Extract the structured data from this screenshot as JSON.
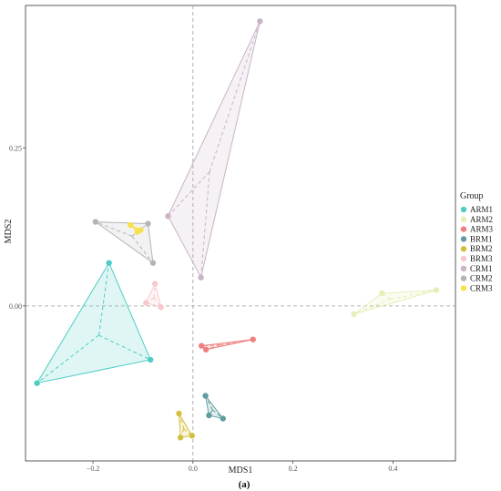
{
  "chart_data": {
    "type": "scatter",
    "title": "",
    "xlabel": "MDS1",
    "ylabel": "MDS2",
    "caption": "(a)",
    "xlim": [
      -0.335,
      0.525
    ],
    "ylim": [
      -0.245,
      0.475
    ],
    "xticks": [
      -0.2,
      0.0,
      0.2,
      0.4
    ],
    "xtick_labels": [
      "−0.2",
      "0.0",
      "0.2",
      "0.4"
    ],
    "yticks": [
      0.0,
      0.25
    ],
    "ytick_labels": [
      "0.00",
      "0.25"
    ],
    "reference_lines": {
      "x": 0,
      "y": 0,
      "style": "dashed"
    },
    "grid": false,
    "legend": {
      "title": "Group",
      "position": "right"
    },
    "series": [
      {
        "name": "ARM1",
        "color": "#4ECDC4",
        "points": [
          [
            -0.168,
            0.068
          ],
          [
            -0.085,
            -0.085
          ],
          [
            -0.312,
            -0.122
          ]
        ]
      },
      {
        "name": "ARM2",
        "color": "#E6EFB9",
        "points": [
          [
            0.322,
            -0.013
          ],
          [
            0.378,
            0.02
          ],
          [
            0.487,
            0.025
          ]
        ]
      },
      {
        "name": "ARM3",
        "color": "#F08080",
        "points": [
          [
            0.017,
            -0.063
          ],
          [
            0.026,
            -0.069
          ],
          [
            0.12,
            -0.053
          ]
        ]
      },
      {
        "name": "BRM1",
        "color": "#5F9EA0",
        "points": [
          [
            0.025,
            -0.142
          ],
          [
            0.032,
            -0.173
          ],
          [
            0.06,
            -0.178
          ]
        ]
      },
      {
        "name": "BRM2",
        "color": "#D4C040",
        "points": [
          [
            -0.028,
            -0.17
          ],
          [
            -0.025,
            -0.208
          ],
          [
            -0.002,
            -0.205
          ]
        ]
      },
      {
        "name": "BRM3",
        "color": "#F8C8CC",
        "points": [
          [
            -0.076,
            0.035
          ],
          [
            -0.094,
            0.005
          ],
          [
            -0.064,
            -0.002
          ]
        ]
      },
      {
        "name": "CRM1",
        "color": "#C9B4C8",
        "points": [
          [
            -0.05,
            0.142
          ],
          [
            0.134,
            0.45
          ],
          [
            0.016,
            0.045
          ]
        ]
      },
      {
        "name": "CRM2",
        "color": "#B5B5B5",
        "points": [
          [
            -0.195,
            0.133
          ],
          [
            -0.09,
            0.13
          ],
          [
            -0.08,
            0.068
          ]
        ]
      },
      {
        "name": "CRM3",
        "color": "#F7E24A",
        "points": [
          [
            -0.125,
            0.128
          ],
          [
            -0.111,
            0.117
          ],
          [
            -0.105,
            0.12
          ]
        ]
      }
    ]
  }
}
